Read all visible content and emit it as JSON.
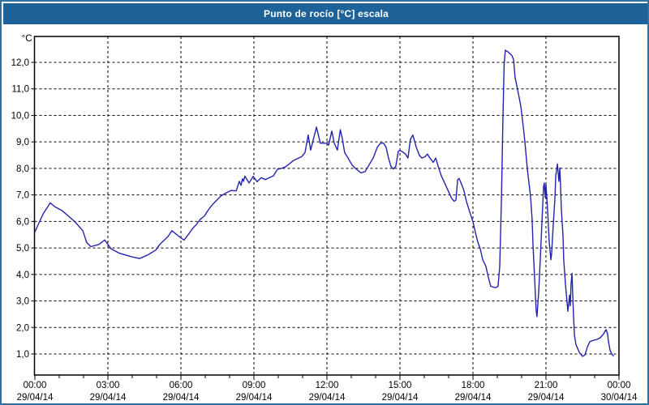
{
  "window": {
    "title": "Punto de rocío [°C] escala"
  },
  "colors": {
    "window_border": "#2e71a2",
    "titlebar_bg": "#1d6298",
    "titlebar_fg": "#ffffff",
    "plot_bg": "#ffffff",
    "frame": "#000000",
    "grid": "#000000",
    "tick": "#000000",
    "label_text": "#000000",
    "line": "#2323ae"
  },
  "chart_data": {
    "type": "line",
    "title": "Punto de rocío [°C] escala",
    "ylabel_unit": "°C",
    "xlabel": "",
    "ylim": [
      0.2,
      13.0
    ],
    "xlim_hours": [
      0,
      24
    ],
    "grid": "dashed",
    "legend": "none",
    "y_ticks": [
      {
        "value": 1,
        "label": "1,0"
      },
      {
        "value": 2,
        "label": "2,0"
      },
      {
        "value": 3,
        "label": "3,0"
      },
      {
        "value": 4,
        "label": "4,0"
      },
      {
        "value": 5,
        "label": "5,0"
      },
      {
        "value": 6,
        "label": "6,0"
      },
      {
        "value": 7,
        "label": "7,0"
      },
      {
        "value": 8,
        "label": "8,0"
      },
      {
        "value": 9,
        "label": "9,0"
      },
      {
        "value": 10,
        "label": "10,0"
      },
      {
        "value": 11,
        "label": "11,0"
      },
      {
        "value": 12,
        "label": "12,0"
      }
    ],
    "x_major_ticks": [
      {
        "hour": 0,
        "time": "00:00",
        "date": "29/04/14"
      },
      {
        "hour": 3,
        "time": "03:00",
        "date": "29/04/14"
      },
      {
        "hour": 6,
        "time": "06:00",
        "date": "29/04/14"
      },
      {
        "hour": 9,
        "time": "09:00",
        "date": "29/04/14"
      },
      {
        "hour": 12,
        "time": "12:00",
        "date": "29/04/14"
      },
      {
        "hour": 15,
        "time": "15:00",
        "date": "29/04/14"
      },
      {
        "hour": 18,
        "time": "18:00",
        "date": "29/04/14"
      },
      {
        "hour": 21,
        "time": "21:00",
        "date": "29/04/14"
      },
      {
        "hour": 24,
        "time": "00:00",
        "date": "30/04/14"
      }
    ],
    "x_minor_tick_every_hours": 1,
    "series": [
      {
        "name": "Punto de rocío",
        "color": "#2323ae",
        "points_hour_celsius": [
          [
            0.0,
            5.6
          ],
          [
            0.17,
            5.95
          ],
          [
            0.35,
            6.3
          ],
          [
            0.63,
            6.7
          ],
          [
            0.83,
            6.55
          ],
          [
            1.13,
            6.4
          ],
          [
            1.63,
            6.0
          ],
          [
            1.97,
            5.65
          ],
          [
            2.13,
            5.2
          ],
          [
            2.3,
            5.05
          ],
          [
            2.63,
            5.13
          ],
          [
            2.87,
            5.3
          ],
          [
            3.13,
            4.97
          ],
          [
            3.47,
            4.8
          ],
          [
            3.97,
            4.67
          ],
          [
            4.3,
            4.6
          ],
          [
            4.63,
            4.73
          ],
          [
            4.97,
            4.92
          ],
          [
            5.13,
            5.13
          ],
          [
            5.47,
            5.43
          ],
          [
            5.63,
            5.65
          ],
          [
            5.97,
            5.4
          ],
          [
            6.13,
            5.3
          ],
          [
            6.3,
            5.5
          ],
          [
            6.47,
            5.72
          ],
          [
            6.63,
            5.88
          ],
          [
            6.8,
            6.08
          ],
          [
            6.97,
            6.21
          ],
          [
            7.13,
            6.44
          ],
          [
            7.3,
            6.64
          ],
          [
            7.47,
            6.8
          ],
          [
            7.63,
            6.95
          ],
          [
            7.8,
            7.05
          ],
          [
            8.07,
            7.17
          ],
          [
            8.27,
            7.15
          ],
          [
            8.4,
            7.51
          ],
          [
            8.47,
            7.36
          ],
          [
            8.53,
            7.61
          ],
          [
            8.57,
            7.51
          ],
          [
            8.63,
            7.71
          ],
          [
            8.8,
            7.45
          ],
          [
            8.97,
            7.7
          ],
          [
            9.13,
            7.5
          ],
          [
            9.3,
            7.65
          ],
          [
            9.47,
            7.58
          ],
          [
            9.63,
            7.65
          ],
          [
            9.8,
            7.72
          ],
          [
            9.97,
            7.97
          ],
          [
            10.13,
            8.0
          ],
          [
            10.3,
            8.06
          ],
          [
            10.63,
            8.3
          ],
          [
            10.97,
            8.45
          ],
          [
            11.1,
            8.6
          ],
          [
            11.23,
            9.26
          ],
          [
            11.33,
            8.69
          ],
          [
            11.57,
            9.56
          ],
          [
            11.73,
            8.95
          ],
          [
            12.0,
            8.95
          ],
          [
            12.07,
            8.88
          ],
          [
            12.2,
            9.41
          ],
          [
            12.3,
            8.95
          ],
          [
            12.43,
            8.69
          ],
          [
            12.55,
            9.46
          ],
          [
            12.63,
            9.13
          ],
          [
            12.73,
            8.59
          ],
          [
            12.87,
            8.39
          ],
          [
            13.03,
            8.13
          ],
          [
            13.2,
            7.98
          ],
          [
            13.4,
            7.83
          ],
          [
            13.57,
            7.88
          ],
          [
            13.73,
            8.13
          ],
          [
            13.9,
            8.39
          ],
          [
            14.07,
            8.8
          ],
          [
            14.2,
            8.95
          ],
          [
            14.33,
            8.95
          ],
          [
            14.43,
            8.8
          ],
          [
            14.53,
            8.39
          ],
          [
            14.63,
            8.08
          ],
          [
            14.73,
            7.98
          ],
          [
            14.83,
            8.08
          ],
          [
            14.93,
            8.64
          ],
          [
            15.0,
            8.69
          ],
          [
            15.23,
            8.54
          ],
          [
            15.33,
            8.39
          ],
          [
            15.43,
            9.1
          ],
          [
            15.53,
            9.26
          ],
          [
            15.67,
            8.8
          ],
          [
            15.8,
            8.49
          ],
          [
            15.9,
            8.39
          ],
          [
            16.03,
            8.44
          ],
          [
            16.13,
            8.54
          ],
          [
            16.23,
            8.39
          ],
          [
            16.37,
            8.23
          ],
          [
            16.47,
            8.39
          ],
          [
            16.57,
            8.08
          ],
          [
            16.7,
            7.72
          ],
          [
            16.8,
            7.52
          ],
          [
            16.9,
            7.32
          ],
          [
            17.03,
            7.06
          ],
          [
            17.13,
            6.86
          ],
          [
            17.23,
            6.76
          ],
          [
            17.3,
            6.81
          ],
          [
            17.37,
            7.57
          ],
          [
            17.43,
            7.62
          ],
          [
            17.53,
            7.41
          ],
          [
            17.63,
            7.16
          ],
          [
            17.73,
            6.76
          ],
          [
            17.87,
            6.35
          ],
          [
            18.0,
            5.99
          ],
          [
            18.1,
            5.58
          ],
          [
            18.2,
            5.22
          ],
          [
            18.3,
            4.97
          ],
          [
            18.4,
            4.56
          ],
          [
            18.53,
            4.31
          ],
          [
            18.63,
            3.9
          ],
          [
            18.73,
            3.55
          ],
          [
            18.93,
            3.5
          ],
          [
            19.03,
            3.55
          ],
          [
            19.1,
            4.3
          ],
          [
            19.17,
            6.8
          ],
          [
            19.23,
            9.8
          ],
          [
            19.28,
            11.9
          ],
          [
            19.33,
            12.46
          ],
          [
            19.43,
            12.4
          ],
          [
            19.53,
            12.32
          ],
          [
            19.6,
            12.26
          ],
          [
            19.67,
            12.1
          ],
          [
            19.73,
            11.44
          ],
          [
            19.9,
            10.67
          ],
          [
            19.97,
            10.32
          ],
          [
            20.07,
            9.55
          ],
          [
            20.13,
            9.04
          ],
          [
            20.23,
            8.02
          ],
          [
            20.3,
            7.46
          ],
          [
            20.37,
            6.9
          ],
          [
            20.43,
            6.08
          ],
          [
            20.47,
            5.06
          ],
          [
            20.53,
            3.94
          ],
          [
            20.57,
            3.12
          ],
          [
            20.6,
            2.61
          ],
          [
            20.63,
            2.41
          ],
          [
            20.7,
            3.33
          ],
          [
            20.77,
            4.65
          ],
          [
            20.83,
            5.88
          ],
          [
            20.87,
            6.69
          ],
          [
            20.9,
            7.31
          ],
          [
            20.93,
            7.45
          ],
          [
            20.97,
            6.9
          ],
          [
            21.0,
            7.4
          ],
          [
            21.07,
            6.39
          ],
          [
            21.13,
            5.27
          ],
          [
            21.2,
            4.55
          ],
          [
            21.23,
            4.76
          ],
          [
            21.3,
            5.88
          ],
          [
            21.37,
            6.9
          ],
          [
            21.4,
            7.71
          ],
          [
            21.47,
            8.17
          ],
          [
            21.53,
            7.51
          ],
          [
            21.57,
            8.02
          ],
          [
            21.6,
            7.31
          ],
          [
            21.63,
            6.49
          ],
          [
            21.7,
            5.47
          ],
          [
            21.73,
            4.55
          ],
          [
            21.8,
            3.63
          ],
          [
            21.87,
            2.92
          ],
          [
            21.9,
            2.61
          ],
          [
            21.97,
            3.22
          ],
          [
            22.0,
            2.82
          ],
          [
            22.03,
            3.63
          ],
          [
            22.07,
            4.04
          ],
          [
            22.1,
            3.2
          ],
          [
            22.13,
            2.5
          ],
          [
            22.17,
            1.71
          ],
          [
            22.23,
            1.36
          ],
          [
            22.37,
            1.06
          ],
          [
            22.5,
            0.91
          ],
          [
            22.6,
            0.96
          ],
          [
            22.7,
            1.26
          ],
          [
            22.8,
            1.46
          ],
          [
            22.93,
            1.51
          ],
          [
            23.1,
            1.55
          ],
          [
            23.23,
            1.61
          ],
          [
            23.37,
            1.76
          ],
          [
            23.47,
            1.92
          ],
          [
            23.53,
            1.76
          ],
          [
            23.57,
            1.46
          ],
          [
            23.63,
            1.15
          ],
          [
            23.7,
            1.0
          ],
          [
            23.77,
            0.93
          ]
        ]
      }
    ]
  }
}
